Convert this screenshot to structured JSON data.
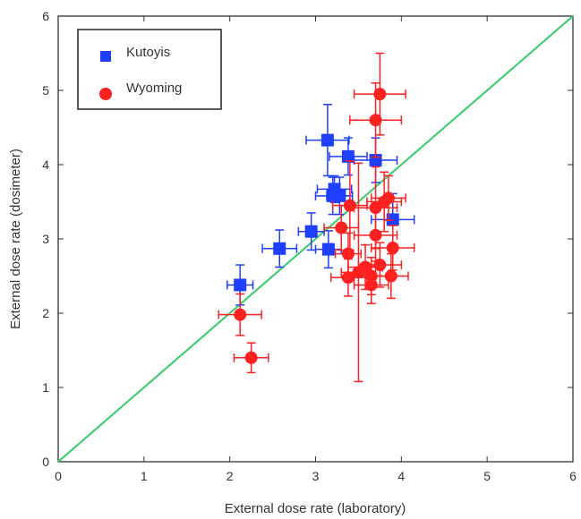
{
  "chart_data": {
    "type": "scatter",
    "xlabel": "External dose rate (laboratory)",
    "ylabel": "External dose rate (dosimeter)",
    "xlim": [
      0,
      6
    ],
    "ylim": [
      0,
      6
    ],
    "xticks": [
      "0",
      "1",
      "2",
      "3",
      "4",
      "5",
      "6"
    ],
    "yticks": [
      "0",
      "1",
      "2",
      "3",
      "4",
      "5",
      "6"
    ],
    "grid": false,
    "legend_position": "top-left",
    "reference_line": {
      "x": [
        0,
        6
      ],
      "y": [
        0,
        6
      ],
      "color": "#33cc66"
    },
    "series": [
      {
        "name": "Kutoyis",
        "marker": "square",
        "color": "#1f3fff",
        "points": [
          {
            "x": 2.12,
            "y": 2.38,
            "xerr": 0.15,
            "yerr": 0.27
          },
          {
            "x": 2.58,
            "y": 2.87,
            "xerr": 0.2,
            "yerr": 0.25
          },
          {
            "x": 2.95,
            "y": 3.1,
            "xerr": 0.15,
            "yerr": 0.25
          },
          {
            "x": 3.15,
            "y": 2.86,
            "xerr": 0.15,
            "yerr": 0.25
          },
          {
            "x": 3.14,
            "y": 4.33,
            "xerr": 0.25,
            "yerr": 0.48
          },
          {
            "x": 3.38,
            "y": 4.11,
            "xerr": 0.22,
            "yerr": 0.25
          },
          {
            "x": 3.2,
            "y": 3.58,
            "xerr": 0.2,
            "yerr": 0.25
          },
          {
            "x": 3.28,
            "y": 3.58,
            "xerr": 0.15,
            "yerr": 0.25
          },
          {
            "x": 3.22,
            "y": 3.67,
            "xerr": 0.2,
            "yerr": 0.18
          },
          {
            "x": 3.7,
            "y": 4.06,
            "xerr": 0.25,
            "yerr": 0.3
          },
          {
            "x": 3.9,
            "y": 3.26,
            "xerr": 0.25,
            "yerr": 0.35
          }
        ]
      },
      {
        "name": "Wyoming",
        "marker": "circle",
        "color": "#ff2020",
        "points": [
          {
            "x": 2.12,
            "y": 1.98,
            "xerr": 0.25,
            "yerr": 0.28
          },
          {
            "x": 2.25,
            "y": 1.4,
            "xerr": 0.2,
            "yerr": 0.2
          },
          {
            "x": 3.3,
            "y": 3.15,
            "xerr": 0.2,
            "yerr": 0.3
          },
          {
            "x": 3.38,
            "y": 2.8,
            "xerr": 0.15,
            "yerr": 0.28
          },
          {
            "x": 3.38,
            "y": 2.48,
            "xerr": 0.2,
            "yerr": 0.25
          },
          {
            "x": 3.5,
            "y": 2.55,
            "xerr": 0.2,
            "yerr": 1.47
          },
          {
            "x": 3.58,
            "y": 2.62,
            "xerr": 0.2,
            "yerr": 0.3
          },
          {
            "x": 3.65,
            "y": 2.38,
            "xerr": 0.2,
            "yerr": 0.25
          },
          {
            "x": 3.65,
            "y": 2.5,
            "xerr": 0.2,
            "yerr": 0.25
          },
          {
            "x": 3.7,
            "y": 3.05,
            "xerr": 0.25,
            "yerr": 0.35
          },
          {
            "x": 3.75,
            "y": 2.65,
            "xerr": 0.25,
            "yerr": 0.3
          },
          {
            "x": 3.8,
            "y": 3.5,
            "xerr": 0.2,
            "yerr": 0.4
          },
          {
            "x": 3.4,
            "y": 3.45,
            "xerr": 0.2,
            "yerr": 0.6
          },
          {
            "x": 3.7,
            "y": 3.42,
            "xerr": 0.25,
            "yerr": 0.55
          },
          {
            "x": 3.7,
            "y": 4.6,
            "xerr": 0.3,
            "yerr": 0.5
          },
          {
            "x": 3.75,
            "y": 4.95,
            "xerr": 0.3,
            "yerr": 0.55
          },
          {
            "x": 3.88,
            "y": 2.5,
            "xerr": 0.2,
            "yerr": 0.3
          },
          {
            "x": 3.9,
            "y": 2.88,
            "xerr": 0.25,
            "yerr": 0.3
          },
          {
            "x": 3.85,
            "y": 3.55,
            "xerr": 0.2,
            "yerr": 0.3
          }
        ]
      }
    ]
  }
}
